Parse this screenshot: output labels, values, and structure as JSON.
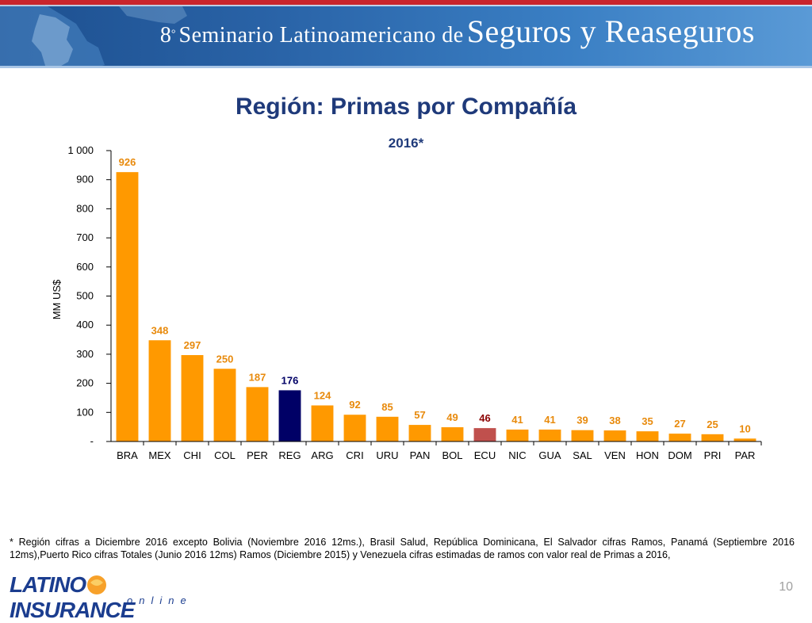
{
  "banner": {
    "title_num": "8",
    "title_deg": "°",
    "title_small": "Seminario Latinoamericano de",
    "title_big": "Seguros y Reaseguros"
  },
  "page": {
    "title": "Región: Primas por Compañía",
    "subtitle": "2016*",
    "footnote": "* Región cifras a Diciembre 2016 excepto Bolivia (Noviembre 2016 12ms.), Brasil Salud, República Dominicana, El Salvador cifras Ramos, Panamá (Septiembre 2016 12ms),Puerto Rico cifras Totales (Junio 2016 12ms) Ramos (Diciembre 2015) y Venezuela cifras estimadas de ramos con valor real de Primas a 2016,",
    "page_number": "10"
  },
  "logo": {
    "text_left": "LATINO",
    "text_right": "INSURANCE",
    "sub": "online"
  },
  "colors": {
    "default_bar": "#ff9900",
    "reg_bar": "#000066",
    "ecu_bar": "#c0504d",
    "default_label": "#e88a0c",
    "reg_label": "#000066",
    "ecu_label": "#8b0000",
    "title": "#1f3a7a"
  },
  "chart_data": {
    "type": "bar",
    "title": "2016*",
    "ylabel": "MM US$",
    "ylim": [
      0,
      1000
    ],
    "yticks": [
      0,
      100,
      200,
      300,
      400,
      500,
      600,
      700,
      800,
      900,
      1000
    ],
    "ytick_labels": [
      "-",
      "100",
      "200",
      "300",
      "400",
      "500",
      "600",
      "700",
      "800",
      "900",
      "1 000"
    ],
    "categories": [
      "BRA",
      "MEX",
      "CHI",
      "COL",
      "PER",
      "REG",
      "ARG",
      "CRI",
      "URU",
      "PAN",
      "BOL",
      "ECU",
      "NIC",
      "GUA",
      "SAL",
      "VEN",
      "HON",
      "DOM",
      "PRI",
      "PAR"
    ],
    "values": [
      926,
      348,
      297,
      250,
      187,
      176,
      124,
      92,
      85,
      57,
      49,
      46,
      41,
      41,
      39,
      38,
      35,
      27,
      25,
      10
    ],
    "highlight": {
      "REG": "reg",
      "ECU": "ecu"
    }
  }
}
